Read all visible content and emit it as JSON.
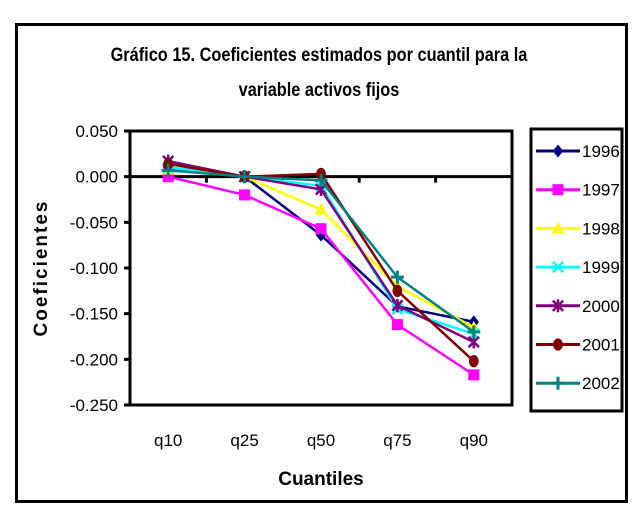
{
  "chart_data": {
    "type": "line",
    "title": "Gráfico 15. Coeficientes estimados por cuantil para la variable activos fijos",
    "title_lines": [
      "Gráfico 15. Coeficientes estimados por cuantil para la",
      "variable activos fijos"
    ],
    "xlabel": "Cuantiles",
    "ylabel": "Coeficientes",
    "categories": [
      "q10",
      "q25",
      "q50",
      "q75",
      "q90"
    ],
    "ylim": [
      -0.25,
      0.05
    ],
    "yticks": [
      0.05,
      0.0,
      -0.05,
      -0.1,
      -0.15,
      -0.2,
      -0.25
    ],
    "ytick_labels": [
      "0.050",
      "0.000",
      "-0.050",
      "-0.100",
      "-0.150",
      "-0.200",
      "-0.250"
    ],
    "grid": false,
    "legend_position": "right",
    "series": [
      {
        "name": "1996",
        "color": "#000080",
        "marker": "diamond",
        "values": [
          0.01,
          0.0,
          -0.064,
          -0.142,
          -0.159
        ]
      },
      {
        "name": "1997",
        "color": "#FF00FF",
        "marker": "square",
        "values": [
          0.0,
          -0.02,
          -0.057,
          -0.162,
          -0.217
        ]
      },
      {
        "name": "1998",
        "color": "#FFFF00",
        "marker": "triangle",
        "values": [
          0.008,
          0.0,
          -0.036,
          -0.12,
          -0.165
        ]
      },
      {
        "name": "1999",
        "color": "#00FFFF",
        "marker": "x",
        "values": [
          0.01,
          0.0,
          -0.01,
          -0.145,
          -0.172
        ]
      },
      {
        "name": "2000",
        "color": "#800080",
        "marker": "asterisk",
        "values": [
          0.017,
          0.0,
          -0.014,
          -0.141,
          -0.181
        ]
      },
      {
        "name": "2001",
        "color": "#800000",
        "marker": "circle",
        "values": [
          0.014,
          0.0,
          0.003,
          -0.125,
          -0.202
        ]
      },
      {
        "name": "2002",
        "color": "#008080",
        "marker": "plus",
        "values": [
          0.007,
          0.0,
          -0.004,
          -0.11,
          -0.17
        ]
      }
    ]
  }
}
